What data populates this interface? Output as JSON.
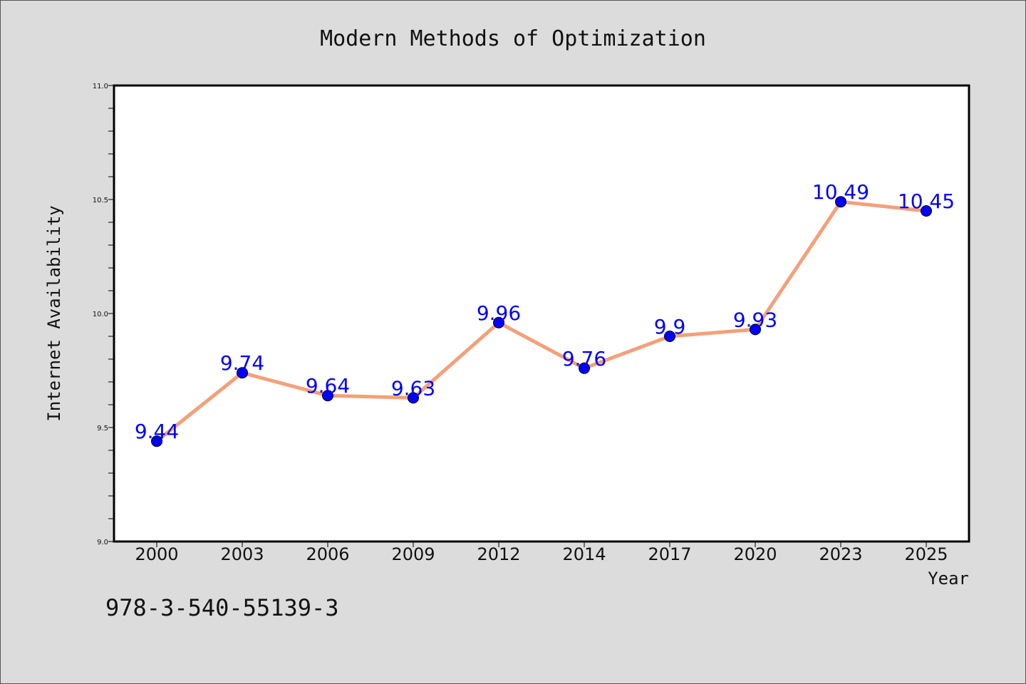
{
  "chart_data": {
    "type": "line",
    "title": "Modern Methods of Optimization",
    "xlabel": "Year",
    "ylabel": "Internet Availability",
    "categories": [
      "2000",
      "2003",
      "2006",
      "2009",
      "2012",
      "2014",
      "2017",
      "2020",
      "2023",
      "2025"
    ],
    "series": [
      {
        "values": [
          9.44,
          9.74,
          9.64,
          9.63,
          9.96,
          9.76,
          9.9,
          9.93,
          10.49,
          10.45
        ],
        "data_labels": [
          "9.44",
          "9.74",
          "9.64",
          "9.63",
          "9.96",
          "9.76",
          "9.9",
          "9.93",
          "10.49",
          "10.45"
        ]
      }
    ],
    "ylim": [
      9.0,
      11.0
    ],
    "yticks": [
      "9.0",
      "9.5",
      "10.0",
      "10.5",
      "11.0"
    ],
    "grid": false,
    "line_color": "#f4a07a",
    "marker_color": "#0000ff",
    "label_color": "#0000ff"
  },
  "footer": {
    "isbn": "978-3-540-55139-3"
  }
}
